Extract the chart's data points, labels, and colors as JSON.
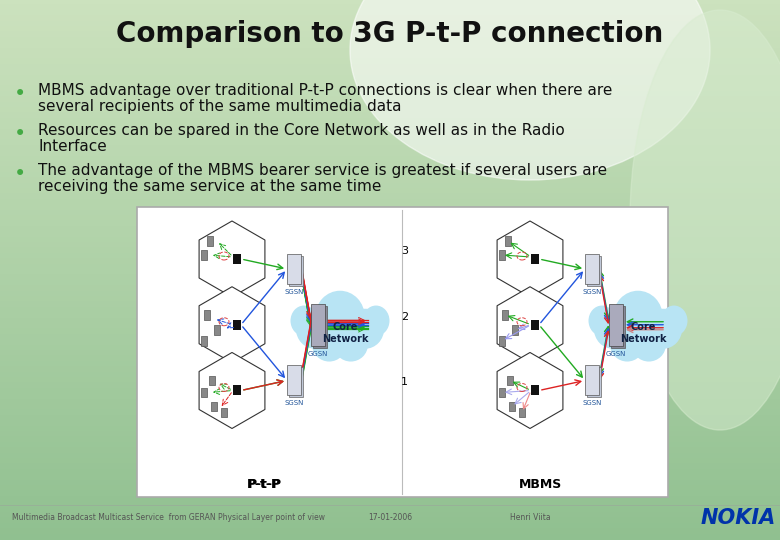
{
  "title": "Comparison to 3G P-t-P connection",
  "bullet1_line1": "MBMS advantage over traditional P-t-P connections is clear when there are",
  "bullet1_line2": "several recipients of the same multimedia data",
  "bullet2_line1": "Resources can be spared in the Core Network as well as in the Radio",
  "bullet2_line2": "Interface",
  "bullet3_line1": "The advantage of the MBMS bearer service is greatest if several users are",
  "bullet3_line2": "receiving the same service at the same time",
  "footer_left": "Multimedia Broadcast Multicast Service  from GERAN Physical Layer point of view",
  "footer_mid": "17-01-2006",
  "footer_right": "Henri Viita",
  "title_color": "#111111",
  "bullet_color": "#111111",
  "bullet_dot_color": "#44aa44",
  "footer_color": "#555555",
  "nokia_color": "#0033aa",
  "diagram_border": "#999999",
  "bg_green_light": "#c8e0b8",
  "bg_green_dark": "#9ec898",
  "bg_white_highlight": "#eaf5e8"
}
